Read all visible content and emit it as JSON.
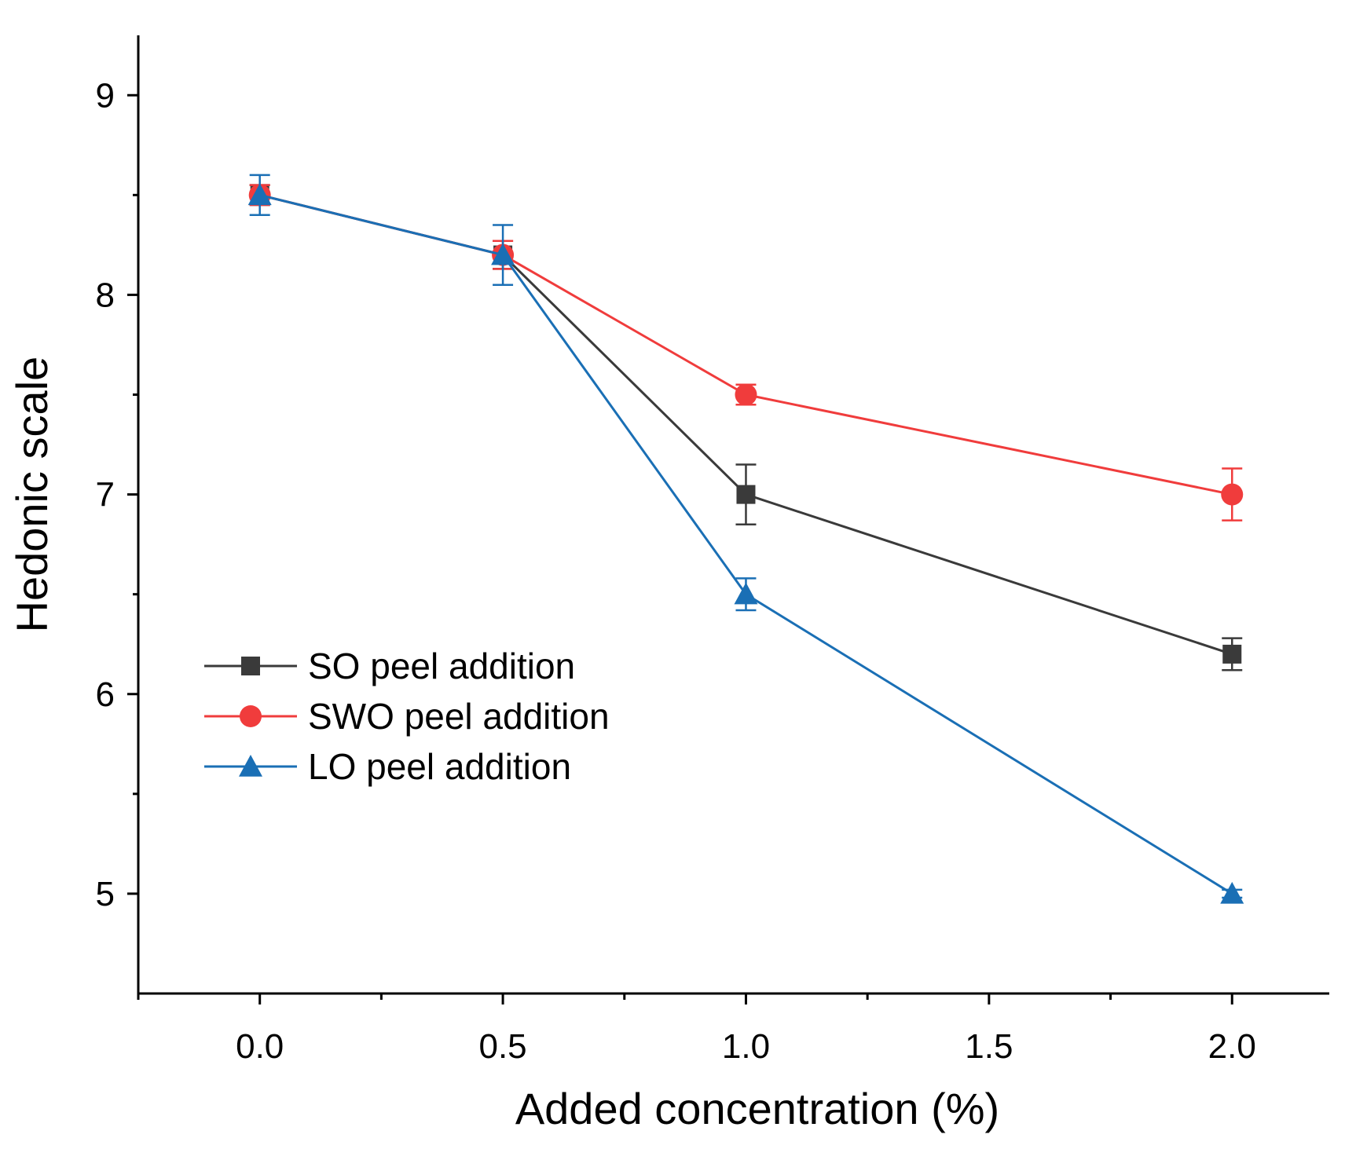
{
  "chart_data": {
    "type": "line",
    "title": "",
    "xlabel": "Added concentration (%)",
    "ylabel": "Hedonic scale",
    "xlim": [
      -0.25,
      2.2
    ],
    "ylim": [
      4.5,
      9.3
    ],
    "x_ticks": [
      0.0,
      0.5,
      1.0,
      1.5,
      2.0
    ],
    "x_tick_labels": [
      "0.0",
      "0.5",
      "1.0",
      "1.5",
      "2.0"
    ],
    "y_ticks": [
      5,
      6,
      7,
      8,
      9
    ],
    "y_tick_labels": [
      "5",
      "6",
      "7",
      "8",
      "9"
    ],
    "grid": false,
    "legend_position": "center-left",
    "x": [
      0.0,
      0.5,
      1.0,
      2.0
    ],
    "series": [
      {
        "name": "SO peel addition",
        "color": "#3a3a3a",
        "marker": "square",
        "values": [
          8.5,
          8.2,
          7.0,
          6.2
        ],
        "errors": [
          0.05,
          0.07,
          0.15,
          0.08
        ]
      },
      {
        "name": "SWO peel addition",
        "color": "#f03c3c",
        "marker": "circle",
        "values": [
          8.5,
          8.2,
          7.5,
          7.0
        ],
        "errors": [
          0.05,
          0.07,
          0.05,
          0.13
        ]
      },
      {
        "name": "LO peel addition",
        "color": "#1a6fb5",
        "marker": "triangle",
        "values": [
          8.5,
          8.2,
          6.5,
          5.0
        ],
        "errors": [
          0.1,
          0.15,
          0.08,
          0.02
        ]
      }
    ]
  }
}
